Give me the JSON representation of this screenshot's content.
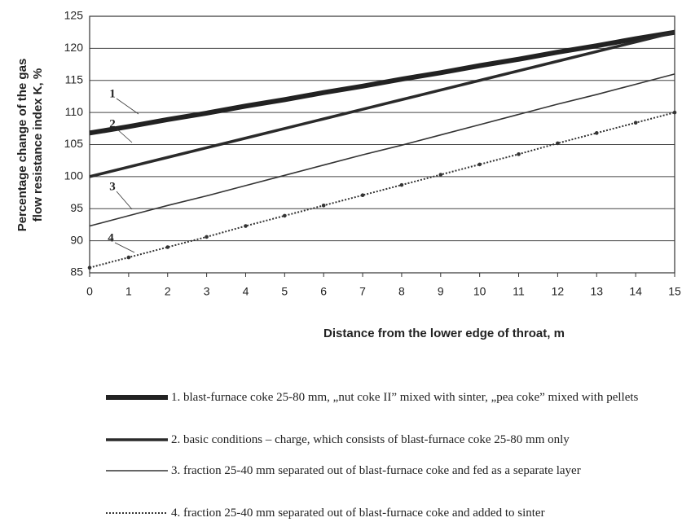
{
  "chart_data": {
    "type": "line",
    "xlabel": "Distance from the lower edge of throat, m",
    "ylabel": [
      "Percentage change of the gas",
      "flow resistance index K, %"
    ],
    "x": [
      0,
      1,
      2,
      3,
      4,
      5,
      6,
      7,
      8,
      9,
      10,
      11,
      12,
      13,
      14,
      15
    ],
    "xlim": [
      0,
      15
    ],
    "xticks": [
      0,
      1,
      2,
      3,
      4,
      5,
      6,
      7,
      8,
      9,
      10,
      11,
      12,
      13,
      14,
      15
    ],
    "ylim": [
      85,
      125
    ],
    "yticks": [
      85,
      90,
      95,
      100,
      105,
      110,
      115,
      120,
      125
    ],
    "grid": true,
    "annotations": [
      "1",
      "2",
      "3",
      "4"
    ],
    "series": [
      {
        "name": "1. blast-furnace coke 25-80 mm, „nut coke II” mixed with sinter, „pea coke” mixed with pellets",
        "color": "#222222",
        "width": 6,
        "dash": "solid",
        "values": [
          106.8,
          107.8,
          108.9,
          109.9,
          111.0,
          112.0,
          113.1,
          114.1,
          115.2,
          116.2,
          117.3,
          118.3,
          119.4,
          120.4,
          121.5,
          122.5
        ]
      },
      {
        "name": "2. basic conditions – charge, which consists of blast-furnace coke 25-80 mm only",
        "color": "#2a2a2a",
        "width": 3.5,
        "dash": "solid",
        "values": [
          100,
          101.5,
          103,
          104.5,
          106,
          107.5,
          109,
          110.5,
          112,
          113.5,
          115,
          116.5,
          118,
          119.5,
          121,
          122.5
        ]
      },
      {
        "name": "3. fraction 25-40 mm separated out of blast-furnace coke and fed as a separate layer",
        "color": "#333333",
        "width": 1.6,
        "dash": "solid",
        "values": [
          92.3,
          93.9,
          95.5,
          97.0,
          98.6,
          100.2,
          101.8,
          103.4,
          104.9,
          106.5,
          108.1,
          109.7,
          111.3,
          112.8,
          114.4,
          116.0
        ]
      },
      {
        "name": "4. fraction 25-40 mm separated out of blast-furnace coke and added to sinter",
        "color": "#333333",
        "width": 2,
        "dash": "dotted",
        "values": [
          85.8,
          87.4,
          89.0,
          90.6,
          92.3,
          93.9,
          95.5,
          97.1,
          98.7,
          100.3,
          101.9,
          103.5,
          105.2,
          106.8,
          108.4,
          110.0
        ]
      }
    ]
  }
}
